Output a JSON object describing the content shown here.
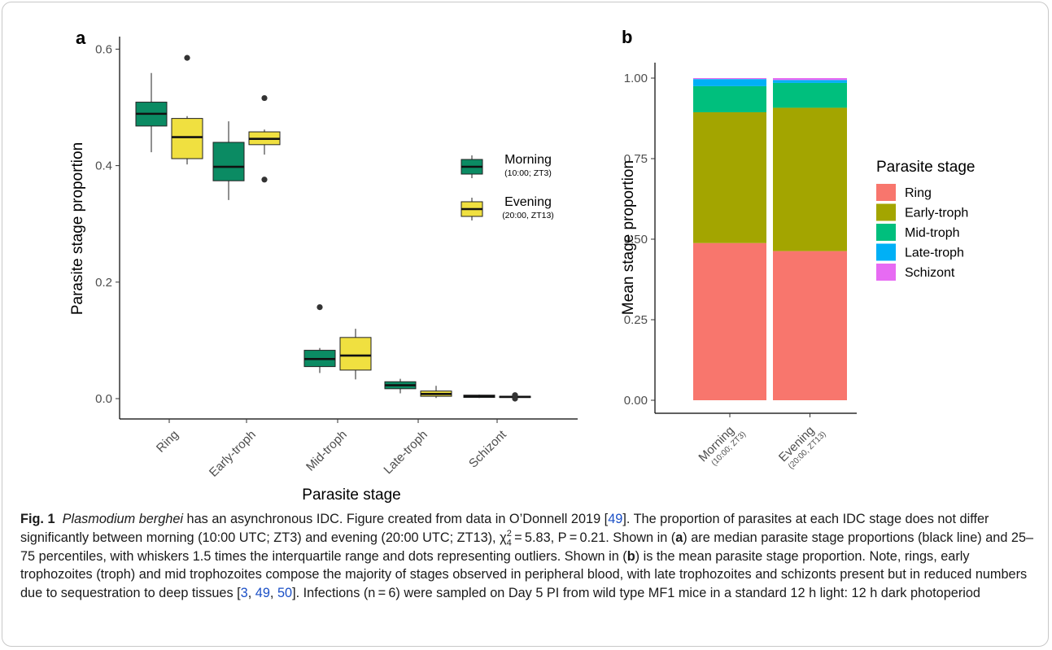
{
  "chart_data": [
    {
      "panel": "a",
      "type": "box",
      "xlabel": "Parasite stage",
      "ylabel": "Parasite stage proportion",
      "ylim": [
        -0.01,
        0.615
      ],
      "yticks": [
        0.0,
        0.2,
        0.4,
        0.6
      ],
      "ytick_labels": [
        "0.0",
        "0.2",
        "0.4",
        "0.6"
      ],
      "categories": [
        "Ring",
        "Early-troph",
        "Mid-troph",
        "Late-troph",
        "Schizont"
      ],
      "grid": false,
      "legend_placement": "right",
      "series": [
        {
          "name": "Morning",
          "sub": "(10:00; ZT3)",
          "color": "#0b8b63",
          "boxes": [
            {
              "whisker_low": 0.423,
              "q1": 0.468,
              "median": 0.489,
              "q3": 0.509,
              "whisker_high": 0.559,
              "outliers": []
            },
            {
              "whisker_low": 0.341,
              "q1": 0.374,
              "median": 0.398,
              "q3": 0.44,
              "whisker_high": 0.476,
              "outliers": []
            },
            {
              "whisker_low": 0.044,
              "q1": 0.055,
              "median": 0.068,
              "q3": 0.083,
              "whisker_high": 0.087,
              "outliers": [
                0.157
              ]
            },
            {
              "whisker_low": 0.009,
              "q1": 0.017,
              "median": 0.023,
              "q3": 0.029,
              "whisker_high": 0.034,
              "outliers": []
            },
            {
              "whisker_low": 0.001,
              "q1": 0.002,
              "median": 0.004,
              "q3": 0.006,
              "whisker_high": 0.007,
              "outliers": []
            }
          ]
        },
        {
          "name": "Evening",
          "sub": "(20:00, ZT13)",
          "color": "#f0e040",
          "boxes": [
            {
              "whisker_low": 0.402,
              "q1": 0.412,
              "median": 0.449,
              "q3": 0.481,
              "whisker_high": 0.485,
              "outliers": [
                0.585
              ]
            },
            {
              "whisker_low": 0.419,
              "q1": 0.436,
              "median": 0.446,
              "q3": 0.458,
              "whisker_high": 0.462,
              "outliers": [
                0.516,
                0.376
              ]
            },
            {
              "whisker_low": 0.033,
              "q1": 0.049,
              "median": 0.074,
              "q3": 0.105,
              "whisker_high": 0.12,
              "outliers": []
            },
            {
              "whisker_low": 0.001,
              "q1": 0.004,
              "median": 0.008,
              "q3": 0.013,
              "whisker_high": 0.022,
              "outliers": []
            },
            {
              "whisker_low": 0.001,
              "q1": 0.002,
              "median": 0.003,
              "q3": 0.004,
              "whisker_high": 0.005,
              "outliers": [
                0.0,
                0.006
              ]
            }
          ]
        }
      ]
    },
    {
      "panel": "b",
      "type": "bar",
      "stacked": true,
      "xlabel": "",
      "ylabel": "Mean stage proportion",
      "ylim": [
        -0.04,
        1.06
      ],
      "yticks": [
        0.0,
        0.25,
        0.5,
        0.75,
        1.0
      ],
      "ytick_labels": [
        "0.00",
        "0.25",
        "0.50",
        "0.75",
        "1.00"
      ],
      "categories": [
        "Morning",
        "Evening"
      ],
      "category_subs": [
        "(10:00; ZT3)",
        "(20:00, ZT13)"
      ],
      "grid": false,
      "legend_title": "Parasite stage",
      "legend_placement": "right",
      "series": [
        {
          "name": "Ring",
          "color": "#f8766d",
          "values": [
            0.488,
            0.463
          ]
        },
        {
          "name": "Early-troph",
          "color": "#a3a500",
          "values": [
            0.406,
            0.445
          ]
        },
        {
          "name": "Mid-troph",
          "color": "#00bf7d",
          "values": [
            0.081,
            0.077
          ]
        },
        {
          "name": "Late-troph",
          "color": "#00b0f6",
          "values": [
            0.022,
            0.009
          ]
        },
        {
          "name": "Schizont",
          "color": "#e76bf3",
          "values": [
            0.003,
            0.006
          ]
        }
      ]
    }
  ],
  "caption": {
    "label": "Fig. 1",
    "parts": [
      {
        "t": "Plasmodium berghei",
        "s": "i"
      },
      {
        "t": " has an asynchronous IDC. Figure created from data in O’Donnell 2019 ["
      },
      {
        "t": "49",
        "s": "ref"
      },
      {
        "t": "]. The proportion of parasites at each IDC stage does not differ significantly between morning (10:00 UTC; ZT3) and evening (20:00 UTC; ZT13), χ"
      },
      {
        "t": "4",
        "s": "sub"
      },
      {
        "t": "2",
        "s": "sup"
      },
      {
        "t": " = 5.83, P = 0.21. Shown in ("
      },
      {
        "t": "a",
        "s": "b"
      },
      {
        "t": ") are median parasite stage proportions (black line) and 25–75 percentiles, with whiskers 1.5 times the interquartile range and dots representing outliers. Shown in ("
      },
      {
        "t": "b",
        "s": "b"
      },
      {
        "t": ") is the mean parasite stage proportion. Note, rings, early trophozoites (troph) and mid trophozoites compose the majority of stages observed in peripheral blood, with late trophozoites and schizonts present but in reduced numbers due to sequestration to deep tissues ["
      },
      {
        "t": "3",
        "s": "ref"
      },
      {
        "t": ", "
      },
      {
        "t": "49",
        "s": "ref"
      },
      {
        "t": ", "
      },
      {
        "t": "50",
        "s": "ref"
      },
      {
        "t": "]. Infections (n = 6) were sampled on Day 5 PI from wild type MF1 mice in a standard 12 h light: 12 h dark photoperiod"
      }
    ]
  }
}
